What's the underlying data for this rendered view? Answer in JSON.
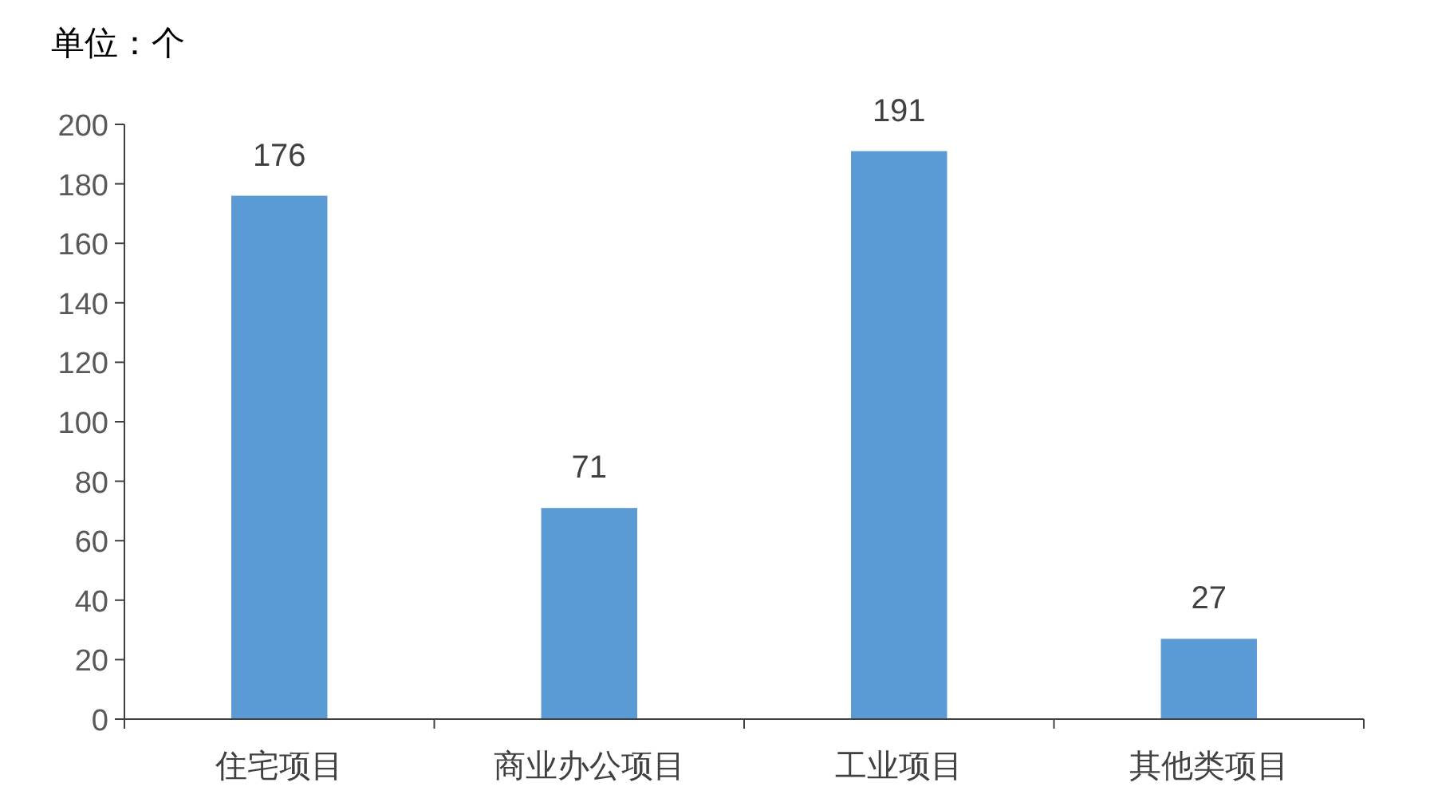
{
  "chart_data": {
    "type": "bar",
    "ylabel": "单位：个",
    "categories": [
      "住宅项目",
      "商业办公项目",
      "工业项目",
      "其他类项目"
    ],
    "values": [
      176,
      71,
      191,
      27
    ],
    "color": "#5b9bd5",
    "ylim": [
      0,
      200
    ],
    "yticks": [
      0,
      20,
      40,
      60,
      80,
      100,
      120,
      140,
      160,
      180,
      200
    ],
    "data_labels": true,
    "grid": false
  }
}
